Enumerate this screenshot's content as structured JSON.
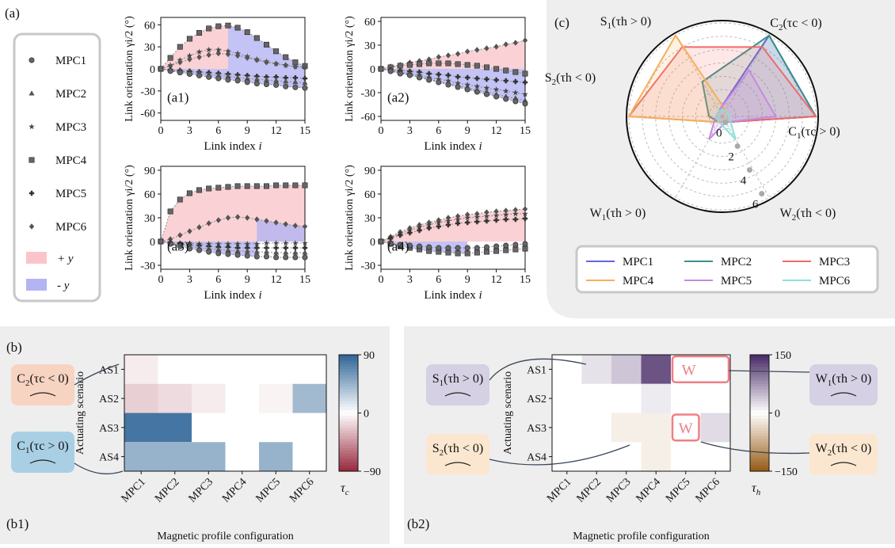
{
  "panel_labels": {
    "a": "(a)",
    "b": "(b)",
    "c": "(c)",
    "b1": "(b1)",
    "b2": "(b2)"
  },
  "legend_a": {
    "items": [
      "MPC1",
      "MPC2",
      "MPC3",
      "MPC4",
      "MPC5",
      "MPC6"
    ],
    "markers": [
      "circle",
      "triangle",
      "star",
      "square",
      "plus",
      "diamond"
    ],
    "pos_label": "+ y",
    "neg_label": "- y",
    "pos_color": "#f9c5cb",
    "neg_color": "#b4b4f2"
  },
  "chart_data": [
    {
      "id": "a1",
      "type": "line",
      "panel_label": "(a1)",
      "xlabel_main": "Link index ",
      "xlabel_var": "i",
      "ylabel": "Link orientation γi/2 (°)",
      "xlim": [
        0,
        15
      ],
      "ylim": [
        -70,
        70
      ],
      "xticks": [
        0,
        3,
        6,
        9,
        12,
        15
      ],
      "yticks": [
        -60,
        -30,
        0,
        30,
        60
      ],
      "x": [
        0,
        1,
        2,
        3,
        4,
        5,
        6,
        7,
        8,
        9,
        10,
        11,
        12,
        13,
        14,
        15
      ],
      "series": [
        {
          "marker": "square",
          "values": [
            0,
            15,
            30,
            41,
            49,
            55,
            58,
            59,
            56,
            50,
            42,
            33,
            24,
            16,
            9,
            4
          ]
        },
        {
          "marker": "star",
          "values": [
            0,
            5,
            12,
            18,
            23,
            26,
            26,
            24,
            21,
            17,
            13,
            10,
            7,
            5,
            3,
            2
          ]
        },
        {
          "marker": "diamond",
          "values": [
            0,
            4,
            9,
            13,
            16,
            19,
            21,
            20,
            18,
            15,
            12,
            9,
            7,
            5,
            3,
            2
          ]
        },
        {
          "marker": "plus",
          "values": [
            0,
            -1,
            -2,
            -3,
            -4,
            -5,
            -6,
            -7,
            -8,
            -9,
            -10,
            -11,
            -11,
            -12,
            -12,
            -13
          ]
        },
        {
          "marker": "triangle",
          "values": [
            0,
            -2,
            -3,
            -5,
            -6,
            -8,
            -9,
            -10,
            -12,
            -13,
            -14,
            -15,
            -16,
            -17,
            -18,
            -19
          ]
        },
        {
          "marker": "circle",
          "values": [
            0,
            -3,
            -5,
            -7,
            -9,
            -11,
            -13,
            -15,
            -16,
            -18,
            -20,
            -21,
            -22,
            -24,
            -25,
            -26
          ]
        }
      ],
      "shading": [
        {
          "type": "pos",
          "x_from": 0,
          "x_to": 7,
          "upper": 0
        },
        {
          "type": "neg",
          "x_from": 7,
          "x_to": 15,
          "upper": 0
        },
        {
          "type": "neg",
          "x_from": 0,
          "x_to": 15,
          "lower": 4,
          "upper_from": "zero"
        }
      ]
    },
    {
      "id": "a2",
      "type": "line",
      "panel_label": "(a2)",
      "xlabel_main": "Link index ",
      "xlabel_var": "i",
      "ylabel": "Link orientation γi/2 (°)",
      "xlim": [
        0,
        15
      ],
      "ylim": [
        -65,
        65
      ],
      "xticks": [
        0,
        3,
        6,
        9,
        12,
        15
      ],
      "yticks": [
        -60,
        -30,
        0,
        30,
        60
      ],
      "x": [
        0,
        1,
        2,
        3,
        4,
        5,
        6,
        7,
        8,
        9,
        10,
        11,
        12,
        13,
        14,
        15
      ],
      "series": [
        {
          "marker": "diamond",
          "values": [
            0,
            3,
            5,
            8,
            10,
            12,
            15,
            17,
            19,
            22,
            24,
            26,
            28,
            31,
            33,
            36
          ]
        },
        {
          "marker": "square",
          "values": [
            0,
            2,
            4,
            5,
            6,
            7,
            7,
            7,
            6,
            5,
            4,
            2,
            0,
            -2,
            -4,
            -6
          ]
        },
        {
          "marker": "plus",
          "values": [
            0,
            -1,
            -2,
            -3,
            -4,
            -6,
            -7,
            -8,
            -10,
            -11,
            -12,
            -13,
            -14,
            -15,
            -16,
            -17
          ]
        },
        {
          "marker": "star",
          "values": [
            0,
            -2,
            -4,
            -6,
            -8,
            -11,
            -13,
            -15,
            -18,
            -20,
            -22,
            -24,
            -26,
            -28,
            -30,
            -32
          ]
        },
        {
          "marker": "triangle",
          "values": [
            0,
            -2,
            -5,
            -7,
            -10,
            -13,
            -16,
            -18,
            -21,
            -24,
            -27,
            -29,
            -32,
            -35,
            -37,
            -40
          ]
        },
        {
          "marker": "circle",
          "values": [
            0,
            -3,
            -6,
            -8,
            -11,
            -14,
            -17,
            -20,
            -23,
            -26,
            -29,
            -32,
            -35,
            -38,
            -41,
            -44
          ]
        }
      ],
      "shading": [
        {
          "type": "pos",
          "series_index": 0
        },
        {
          "type": "neg",
          "series_index": 5
        }
      ]
    },
    {
      "id": "a3",
      "type": "line",
      "panel_label": "(a3)",
      "xlabel_main": "Link index ",
      "xlabel_var": "i",
      "ylabel": "Link orientation γi/2 (°)",
      "xlim": [
        0,
        15
      ],
      "ylim": [
        -35,
        95
      ],
      "xticks": [
        0,
        3,
        6,
        9,
        12,
        15
      ],
      "yticks": [
        -30,
        0,
        30,
        60,
        90
      ],
      "x": [
        0,
        1,
        2,
        3,
        4,
        5,
        6,
        7,
        8,
        9,
        10,
        11,
        12,
        13,
        14,
        15
      ],
      "series": [
        {
          "marker": "square",
          "values": [
            0,
            38,
            53,
            61,
            65,
            67,
            68,
            69,
            70,
            70,
            70,
            70,
            71,
            71,
            71,
            71
          ]
        },
        {
          "marker": "diamond",
          "values": [
            0,
            3,
            8,
            13,
            18,
            23,
            27,
            30,
            31,
            30,
            28,
            26,
            24,
            22,
            20,
            19
          ]
        },
        {
          "marker": "star",
          "values": [
            0,
            -1,
            -2,
            -2,
            -3,
            -3,
            -3,
            -3,
            -3,
            -3,
            -3,
            -2,
            -2,
            -2,
            -2,
            -2
          ]
        },
        {
          "marker": "plus",
          "values": [
            0,
            -1,
            -3,
            -4,
            -5,
            -6,
            -7,
            -7,
            -8,
            -8,
            -8,
            -8,
            -8,
            -8,
            -8,
            -8
          ]
        },
        {
          "marker": "triangle",
          "values": [
            0,
            -2,
            -4,
            -6,
            -8,
            -9,
            -10,
            -11,
            -12,
            -12,
            -13,
            -13,
            -14,
            -14,
            -14,
            -14
          ]
        },
        {
          "marker": "circle",
          "values": [
            0,
            -3,
            -6,
            -9,
            -11,
            -13,
            -15,
            -16,
            -17,
            -18,
            -19,
            -19,
            -20,
            -20,
            -20,
            -20
          ]
        }
      ],
      "shading": [
        {
          "type": "pos",
          "series_index": 0
        },
        {
          "type": "neg",
          "series_index": 5,
          "x_to": 10
        },
        {
          "type": "neg",
          "series_index": 1,
          "x_from": 10
        }
      ]
    },
    {
      "id": "a4",
      "type": "line",
      "panel_label": "(a4)",
      "xlabel_main": "Link index ",
      "xlabel_var": "i",
      "ylabel": "Link orientation γi/2 (°)",
      "xlim": [
        0,
        15
      ],
      "ylim": [
        -35,
        95
      ],
      "xticks": [
        0,
        3,
        6,
        9,
        12,
        15
      ],
      "yticks": [
        -30,
        0,
        30,
        60,
        90
      ],
      "x": [
        0,
        1,
        2,
        3,
        4,
        5,
        6,
        7,
        8,
        9,
        10,
        11,
        12,
        13,
        14,
        15
      ],
      "series": [
        {
          "marker": "diamond",
          "values": [
            0,
            6,
            12,
            17,
            21,
            24,
            27,
            30,
            32,
            34,
            35,
            37,
            38,
            39,
            40,
            41
          ]
        },
        {
          "marker": "star",
          "values": [
            0,
            5,
            10,
            14,
            18,
            21,
            24,
            26,
            28,
            30,
            31,
            32,
            33,
            34,
            35,
            35
          ]
        },
        {
          "marker": "plus",
          "values": [
            0,
            4,
            8,
            11,
            14,
            17,
            19,
            21,
            23,
            24,
            25,
            26,
            27,
            28,
            28,
            29
          ]
        },
        {
          "marker": "square",
          "values": [
            0,
            -3,
            -6,
            -8,
            -10,
            -12,
            -13,
            -14,
            -15,
            -15,
            -14,
            -13,
            -12,
            -11,
            -10,
            -9
          ]
        },
        {
          "marker": "circle",
          "values": [
            0,
            -2,
            -4,
            -5,
            -6,
            -7,
            -8,
            -8,
            -8,
            -8,
            -8,
            -7,
            -6,
            -5,
            -4,
            -3
          ]
        }
      ],
      "shading": [
        {
          "type": "pos",
          "series_index": 0
        },
        {
          "type": "neg",
          "series_index": 3,
          "x_to": 9
        }
      ]
    },
    {
      "id": "c",
      "type": "radar",
      "panel_label": "(c)",
      "axes": [
        {
          "main": "C",
          "sub": "1",
          "cond": "(τc > 0)"
        },
        {
          "main": "C",
          "sub": "2",
          "cond": "(τc < 0)"
        },
        {
          "main": "S",
          "sub": "1",
          "cond": "(τh > 0)"
        },
        {
          "main": "S",
          "sub": "2",
          "cond": "(τh < 0)"
        },
        {
          "main": "W",
          "sub": "1",
          "cond": "(τh > 0)"
        },
        {
          "main": "W",
          "sub": "2",
          "cond": "(τh < 0)"
        }
      ],
      "rmax": 7,
      "rticks": [
        0,
        2,
        4,
        6
      ],
      "series": [
        {
          "name": "MPC1",
          "color": "#6464e6",
          "values": [
            7,
            7,
            0.5,
            0.5,
            0.5,
            0.5
          ]
        },
        {
          "name": "MPC2",
          "color": "#3c9088",
          "values": [
            7,
            7,
            3,
            1,
            0.5,
            0.5
          ]
        },
        {
          "name": "MPC3",
          "color": "#f06a6a",
          "values": [
            7,
            6,
            6,
            7,
            0.5,
            0.5
          ]
        },
        {
          "name": "MPC4",
          "color": "#f5b058",
          "values": [
            0.5,
            0.5,
            7,
            7,
            0.5,
            0.5
          ]
        },
        {
          "name": "MPC5",
          "color": "#c38be0",
          "values": [
            4,
            4,
            0.5,
            0.5,
            2,
            0.5
          ]
        },
        {
          "name": "MPC6",
          "color": "#8ee0d8",
          "values": [
            0.5,
            0.5,
            0.5,
            0.5,
            0.5,
            2
          ]
        }
      ]
    },
    {
      "id": "b1",
      "type": "heatmap",
      "panel_label": "(b1)",
      "xlabel": "Magnetic profile configuration",
      "ylabel": "Actuating scenario",
      "x": [
        "MPC1",
        "MPC2",
        "MPC3",
        "MPC4",
        "MPC5",
        "MPC6"
      ],
      "y": [
        "AS1",
        "AS2",
        "AS3",
        "AS4"
      ],
      "values": [
        [
          -8,
          null,
          null,
          null,
          null,
          null
        ],
        [
          -20,
          -15,
          -8,
          null,
          -5,
          40
        ],
        [
          80,
          80,
          null,
          null,
          null,
          null
        ],
        [
          45,
          45,
          45,
          null,
          45,
          null
        ]
      ],
      "vmin": -90,
      "vmax": 90,
      "cbar_ticks": [
        90,
        0,
        -90
      ],
      "cbar_label": "τc",
      "notes": [
        {
          "main": "C",
          "sub": "2",
          "cond": "(τc < 0)"
        },
        {
          "main": "C",
          "sub": "1",
          "cond": "(τc > 0)"
        }
      ]
    },
    {
      "id": "b2",
      "type": "heatmap",
      "panel_label": "(b2)",
      "xlabel": "Magnetic profile configuration",
      "ylabel": "Actuating scenario",
      "x": [
        "MPC1",
        "MPC2",
        "MPC3",
        "MPC4",
        "MPC5",
        "MPC6"
      ],
      "y": [
        "AS1",
        "AS2",
        "AS3",
        "AS4"
      ],
      "values": [
        [
          null,
          20,
          40,
          120,
          null,
          null
        ],
        [
          null,
          null,
          null,
          15,
          null,
          null
        ],
        [
          null,
          null,
          -15,
          -15,
          null,
          25
        ],
        [
          null,
          null,
          null,
          -15,
          null,
          null
        ]
      ],
      "vmin": -150,
      "vmax": 150,
      "cbar_ticks": [
        150,
        0,
        -150
      ],
      "cbar_label": "τh",
      "box_text": "W",
      "boxes": [
        {
          "row": 0,
          "col_from": 4,
          "col_to": 5
        },
        {
          "row": 2,
          "col_from": 4,
          "col_to": 4
        }
      ],
      "notes": [
        {
          "main": "S",
          "sub": "1",
          "cond": "(τh > 0)"
        },
        {
          "main": "S",
          "sub": "2",
          "cond": "(τh < 0)"
        },
        {
          "main": "W",
          "sub": "1",
          "cond": "(τh > 0)"
        },
        {
          "main": "W",
          "sub": "2",
          "cond": "(τh < 0)"
        }
      ]
    }
  ]
}
